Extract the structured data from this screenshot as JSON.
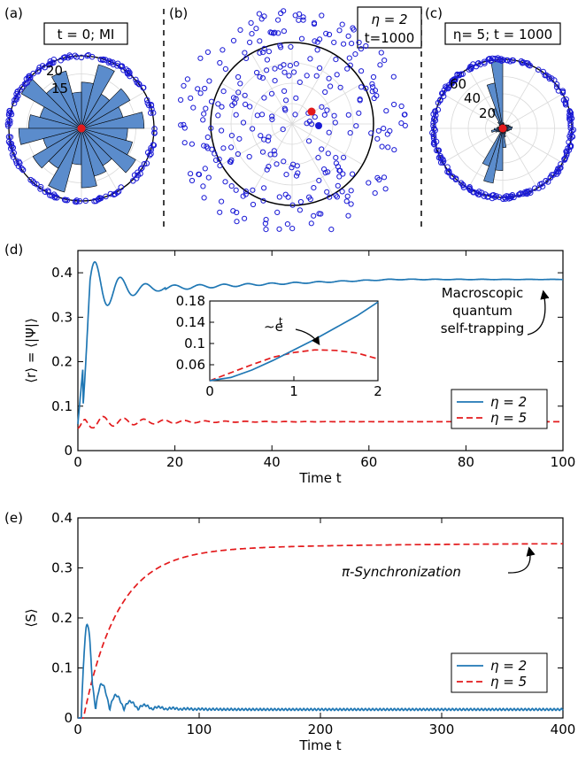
{
  "colors": {
    "blue": "#1f77b4",
    "red": "#e31a1c",
    "point_blue": "#1a1ad6",
    "bar_fill": "#5b8ccc",
    "grid": "#d9d9d9"
  },
  "panels": {
    "a": {
      "label": "(a)",
      "title": "t = 0; MI",
      "ticks": [
        "20",
        "15"
      ]
    },
    "b": {
      "label": "(b)",
      "title_line1": "η = 2",
      "title_line2": "t=1000"
    },
    "c": {
      "label": "(c)",
      "title": "η= 5; t = 1000",
      "ticks": [
        "60",
        "40",
        "20"
      ]
    },
    "d": {
      "label": "(d)"
    },
    "e": {
      "label": "(e)"
    }
  },
  "chart_data": [
    {
      "id": "a",
      "type": "polar-histogram",
      "title": "t = 0; MI",
      "bin_count": 24,
      "radial_ticks": [
        15,
        20
      ],
      "values": [
        19,
        13,
        17,
        12,
        20,
        14,
        11,
        18,
        15,
        21,
        13,
        16,
        19,
        12,
        17,
        14,
        20,
        11,
        18,
        15,
        13,
        19,
        16,
        14
      ]
    },
    {
      "id": "b",
      "type": "scatter",
      "title": "η = 2 t=1000",
      "points": 300,
      "seed": 7
    },
    {
      "id": "c",
      "type": "polar-histogram",
      "title": "η= 5; t = 1000",
      "bin_count": 36,
      "radial_ticks": [
        20,
        40,
        60
      ],
      "values": [
        10,
        8,
        7,
        6,
        5,
        4,
        4,
        5,
        6,
        70,
        48,
        22,
        8,
        5,
        4,
        4,
        5,
        6,
        9,
        12,
        8,
        6,
        5,
        4,
        42,
        58,
        44,
        20,
        9,
        6,
        5,
        4,
        5,
        6,
        7,
        9
      ]
    },
    {
      "id": "d",
      "type": "line",
      "xlabel": "Time t",
      "ylabel": "⟨r⟩ = ⟨|Ψ|⟩",
      "xlim": [
        0,
        100
      ],
      "ylim": [
        0,
        0.45
      ],
      "xticks": [
        0,
        20,
        40,
        60,
        80,
        100
      ],
      "yticks": [
        0,
        0.1,
        0.2,
        0.3,
        0.4
      ],
      "annotation": [
        "Macroscopic",
        "quantum",
        "self-trapping"
      ],
      "series": [
        {
          "name": "η = 2",
          "style": "solid",
          "plateau": 0.385,
          "start": 0.06,
          "first_peak": 0.435
        },
        {
          "name": "η = 5",
          "style": "dashed",
          "plateau": 0.065,
          "start": 0.05,
          "first_peak": 0.085
        }
      ],
      "inset": {
        "xlim": [
          0,
          2
        ],
        "ylim": [
          0.03,
          0.18
        ],
        "xticks": [
          0,
          1,
          2
        ],
        "yticks": [
          0.06,
          0.1,
          0.14,
          0.18
        ],
        "annotation": "∼e",
        "annotation_sup": "t",
        "series": [
          {
            "name": "η = 2",
            "x": [
              0,
              0.25,
              0.5,
              0.75,
              1,
              1.25,
              1.5,
              1.75,
              2
            ],
            "y": [
              0.03,
              0.036,
              0.05,
              0.068,
              0.088,
              0.108,
              0.13,
              0.152,
              0.178
            ]
          },
          {
            "name": "η = 5",
            "x": [
              0,
              0.25,
              0.5,
              0.75,
              1,
              1.25,
              1.5,
              1.75,
              2
            ],
            "y": [
              0.03,
              0.045,
              0.06,
              0.074,
              0.083,
              0.088,
              0.087,
              0.082,
              0.071
            ]
          }
        ]
      }
    },
    {
      "id": "e",
      "type": "line",
      "xlabel": "Time t",
      "ylabel": "⟨S⟩",
      "xlim": [
        0,
        400
      ],
      "ylim": [
        0,
        0.4
      ],
      "xticks": [
        0,
        100,
        200,
        300,
        400
      ],
      "yticks": [
        0,
        0.1,
        0.2,
        0.3,
        0.4
      ],
      "annotation": "π-Synchronization",
      "series": [
        {
          "name": "η = 2",
          "style": "solid",
          "plateau": 0.017,
          "first_peak": 0.2
        },
        {
          "name": "η = 5",
          "style": "dashed",
          "plateau": 0.35
        }
      ]
    }
  ]
}
